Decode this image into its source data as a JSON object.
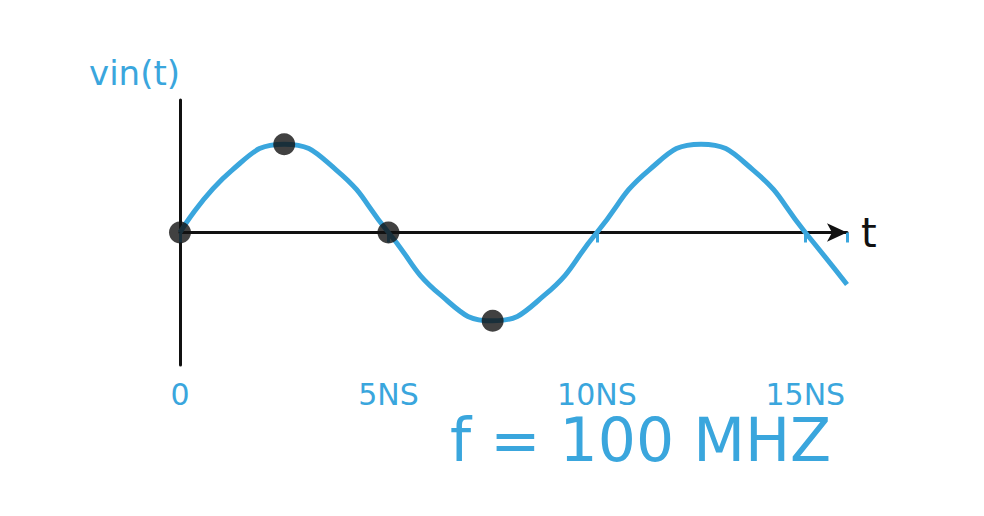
{
  "chart_data": {
    "type": "line",
    "x_label": "t",
    "y_label": "vin(t)",
    "annotations": [
      "f = 100 MHZ"
    ],
    "x": [
      0,
      1.25,
      2.5,
      3.75,
      5,
      6.25,
      7.5,
      8.75,
      10,
      11.25,
      12.5,
      13.75,
      15,
      16
    ],
    "series": [
      {
        "type": "line",
        "color": "#3aa6dd",
        "line_style": "solid",
        "marker": "none",
        "values": [
          0,
          0.707,
          1,
          0.707,
          0,
          -0.707,
          -1,
          -0.707,
          0,
          0.707,
          1,
          0.707,
          0,
          -0.588
        ]
      },
      {
        "type": "scatter",
        "color": "#111111",
        "marker": "circle",
        "values": [
          0,
          null,
          1,
          null,
          0,
          null,
          -1,
          null,
          null,
          null,
          null,
          null,
          null,
          null
        ]
      }
    ],
    "xlim": [
      0,
      16
    ],
    "xticks": [
      0,
      {
        "value": 5,
        "label": "5NS"
      },
      {
        "value": 10,
        "label": "10NS"
      },
      {
        "value": 15,
        "label": "15NS"
      }
    ],
    "ylim": [
      -1.5,
      1.5
    ],
    "yticks": [],
    "tick_labels": "x",
    "grid": false
  }
}
